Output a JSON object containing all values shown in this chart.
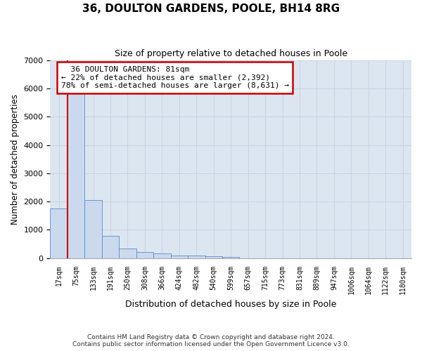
{
  "title": "36, DOULTON GARDENS, POOLE, BH14 8RG",
  "subtitle": "Size of property relative to detached houses in Poole",
  "xlabel": "Distribution of detached houses by size in Poole",
  "ylabel": "Number of detached properties",
  "footnote1": "Contains HM Land Registry data © Crown copyright and database right 2024.",
  "footnote2": "Contains public sector information licensed under the Open Government Licence v3.0.",
  "bin_labels": [
    "17sqm",
    "75sqm",
    "133sqm",
    "191sqm",
    "250sqm",
    "308sqm",
    "366sqm",
    "424sqm",
    "482sqm",
    "540sqm",
    "599sqm",
    "657sqm",
    "715sqm",
    "773sqm",
    "831sqm",
    "889sqm",
    "947sqm",
    "1006sqm",
    "1064sqm",
    "1122sqm",
    "1180sqm"
  ],
  "bar_values": [
    1750,
    5900,
    2050,
    800,
    350,
    230,
    160,
    100,
    100,
    70,
    50,
    0,
    0,
    0,
    0,
    0,
    0,
    0,
    0,
    0,
    0
  ],
  "bar_color": "#cad9ed",
  "bar_edge_color": "#5b8cc8",
  "grid_color": "#c8d4e3",
  "background_color": "#dce6f1",
  "ylim": [
    0,
    7000
  ],
  "yticks": [
    0,
    1000,
    2000,
    3000,
    4000,
    5000,
    6000,
    7000
  ],
  "red_line_color": "#cc0000",
  "annotation_text": "  36 DOULTON GARDENS: 81sqm\n← 22% of detached houses are smaller (2,392)\n78% of semi-detached houses are larger (8,631) →",
  "annotation_box_color": "#cc0000"
}
